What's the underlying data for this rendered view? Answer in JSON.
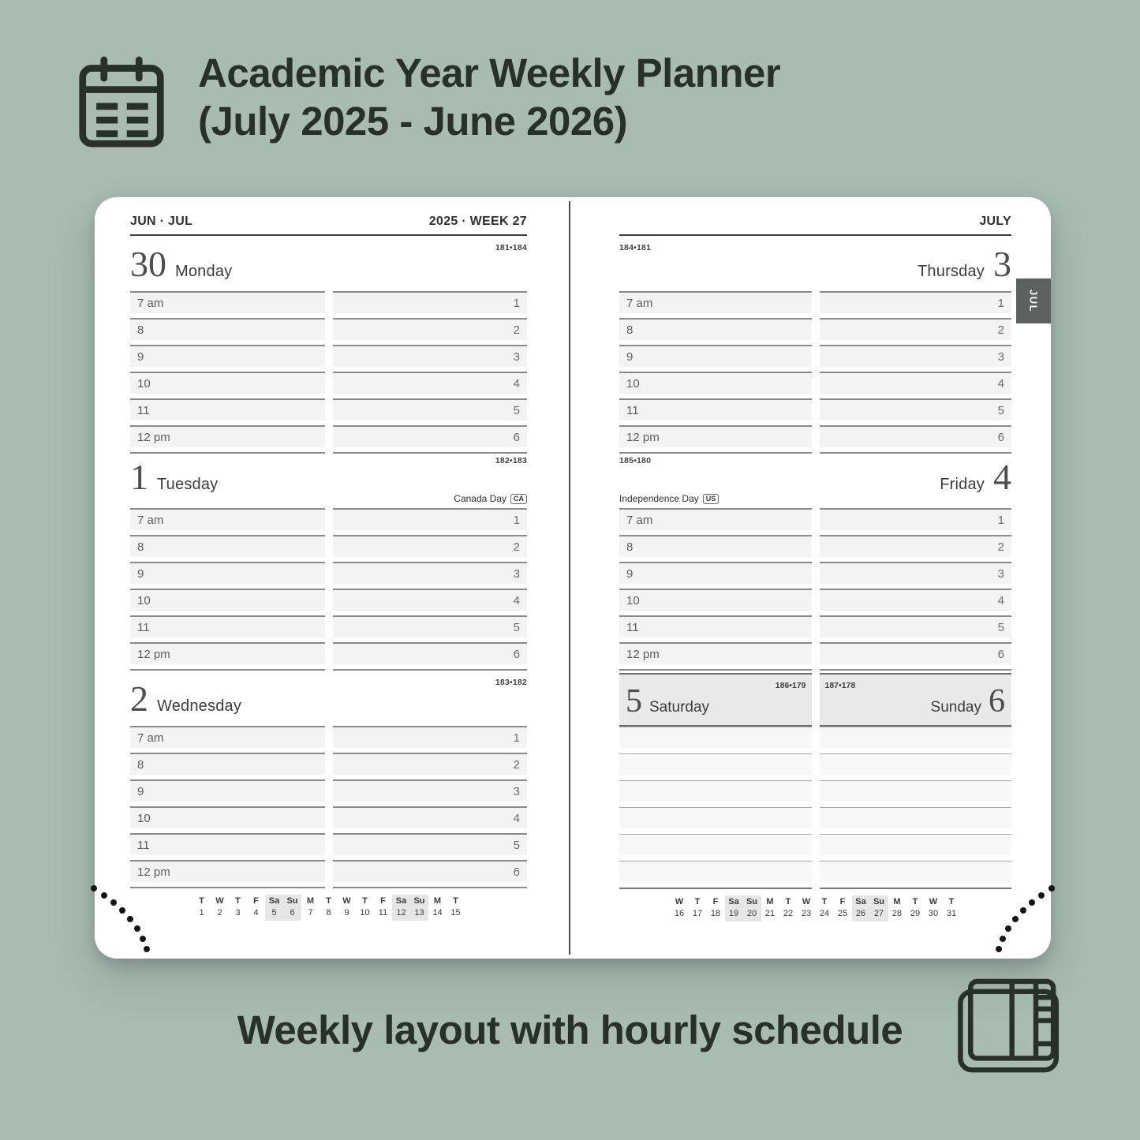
{
  "header": {
    "title_line1": "Academic Year Weekly Planner",
    "title_line2": "(July 2025 - June 2026)"
  },
  "footer": {
    "caption": "Weekly layout with hourly schedule"
  },
  "month_tab": "JUL",
  "hours": [
    "7 am",
    "8",
    "9",
    "10",
    "11",
    "12 pm"
  ],
  "slots": [
    "1",
    "2",
    "3",
    "4",
    "5",
    "6"
  ],
  "colors": {
    "background": "#a8bcb2",
    "ink": "#273029",
    "tab_background": "#5c615d",
    "row_fill": "#f3f3f3",
    "weekend_header_fill": "#e9e9e9",
    "strip_highlight": "#e6e6e6"
  },
  "left_page": {
    "top_left": "JUN · JUL",
    "top_right": "2025 · WEEK 27",
    "days": {
      "monday": {
        "num": "30",
        "name": "Monday",
        "pages": "181•184"
      },
      "tuesday": {
        "num": "1",
        "name": "Tuesday",
        "pages": "182•183",
        "holiday": "Canada Day",
        "holiday_badge": "CA"
      },
      "wednesday": {
        "num": "2",
        "name": "Wednesday",
        "pages": "183•182"
      }
    },
    "strip": {
      "letters": [
        "T",
        "W",
        "T",
        "F",
        "Sa",
        "Su",
        "M",
        "T",
        "W",
        "T",
        "F",
        "Sa",
        "Su",
        "M",
        "T"
      ],
      "numbers": [
        "1",
        "2",
        "3",
        "4",
        "5",
        "6",
        "7",
        "8",
        "9",
        "10",
        "11",
        "12",
        "13",
        "14",
        "15"
      ],
      "weekend_indexes": [
        4,
        5,
        11,
        12
      ]
    }
  },
  "right_page": {
    "top_right": "JULY",
    "days": {
      "thursday": {
        "num": "3",
        "name": "Thursday",
        "pages": "184•181"
      },
      "friday": {
        "num": "4",
        "name": "Friday",
        "pages": "185•180",
        "holiday": "Independence Day",
        "holiday_badge": "US"
      },
      "saturday": {
        "num": "5",
        "name": "Saturday",
        "pages": "186•179"
      },
      "sunday": {
        "num": "6",
        "name": "Sunday",
        "pages": "187•178"
      }
    },
    "strip": {
      "letters": [
        "W",
        "T",
        "F",
        "Sa",
        "Su",
        "M",
        "T",
        "W",
        "T",
        "F",
        "Sa",
        "Su",
        "M",
        "T",
        "W",
        "T"
      ],
      "numbers": [
        "16",
        "17",
        "18",
        "19",
        "20",
        "21",
        "22",
        "23",
        "24",
        "25",
        "26",
        "27",
        "28",
        "29",
        "30",
        "31"
      ],
      "weekend_indexes": [
        3,
        4,
        10,
        11
      ]
    }
  }
}
